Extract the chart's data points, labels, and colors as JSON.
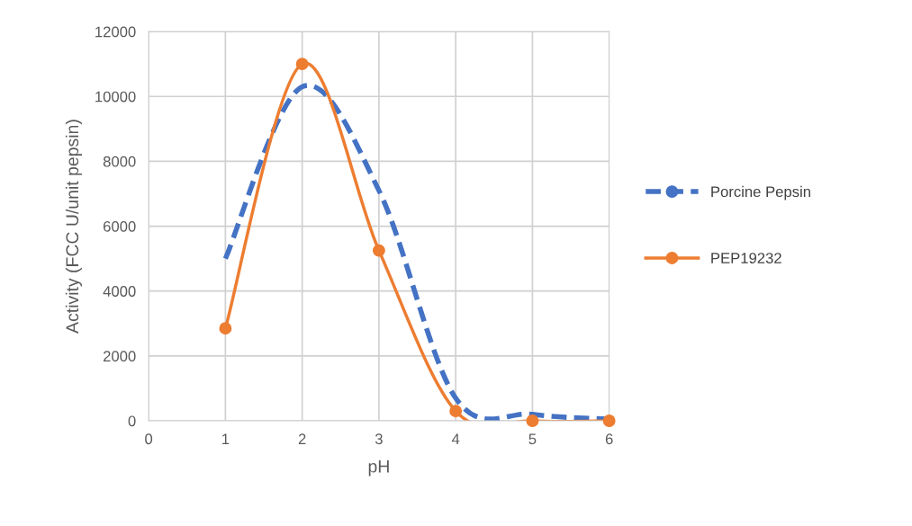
{
  "chart_data": {
    "type": "line",
    "xlabel": "pH",
    "ylabel": "Activity (FCC U/unit pepsin)",
    "x": [
      1,
      2,
      3,
      4,
      5,
      6
    ],
    "series": [
      {
        "name": "Porcine Pepsin",
        "color": "#4472c4",
        "values": [
          5000,
          10300,
          7100,
          700,
          200,
          50
        ],
        "line_style": "dashed",
        "marker": "none"
      },
      {
        "name": "PEP19232",
        "color": "#ed7d31",
        "values": [
          2850,
          11000,
          5250,
          300,
          0,
          0
        ],
        "line_style": "solid",
        "marker": "circle"
      }
    ],
    "xlim": [
      0,
      6
    ],
    "xticks": [
      0,
      1,
      2,
      3,
      4,
      5,
      6
    ],
    "ylim": [
      0,
      12000
    ],
    "yticks": [
      0,
      2000,
      4000,
      6000,
      8000,
      10000,
      12000
    ],
    "grid": true,
    "legend": "right"
  }
}
